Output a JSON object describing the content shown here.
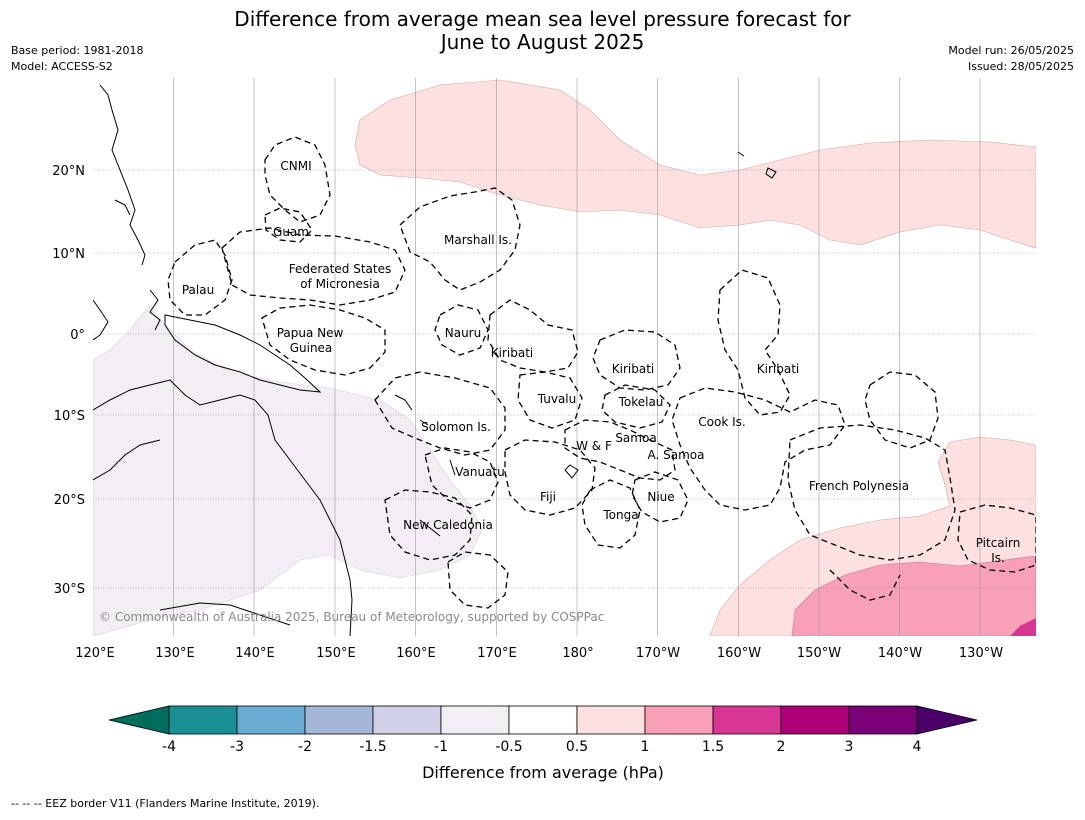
{
  "title_line1": "Difference from average mean sea level pressure forecast for",
  "title_line2": "June to August 2025",
  "base_period": "Base period: 1981-2018",
  "model": "Model: ACCESS-S2",
  "model_run": "Model run: 26/05/2025",
  "issued": "Issued: 28/05/2025",
  "copyright": "© Commonwealth of Australia 2025, Bureau of Meteorology, supported by COSPPac",
  "lat_labels": [
    "20°N",
    "10°N",
    "0°",
    "10°S",
    "20°S",
    "30°S"
  ],
  "lon_labels": [
    "120°E",
    "130°E",
    "140°E",
    "150°E",
    "160°E",
    "170°E",
    "180°",
    "170°W",
    "160°W",
    "150°W",
    "140°W",
    "130°W"
  ],
  "region_labels": {
    "cnmi": "CNMI",
    "guam": "Guam",
    "marshall": "Marshall Is.",
    "fsm_1": "Federated States",
    "fsm_2": "of Micronesia",
    "palau": "Palau",
    "png_1": "Papua New",
    "png_2": "Guinea",
    "nauru": "Nauru",
    "kiribati_w": "Kiribati",
    "kiribati_c": "Kiribati",
    "kiribati_e": "Kiribati",
    "tuvalu": "Tuvalu",
    "tokelau": "Tokelau",
    "cook": "Cook Is.",
    "solomon": "Solomon Is.",
    "samoa": "Samoa",
    "wf": "W & F",
    "asamoa": "A. Samoa",
    "vanuatu": "Vanuatu",
    "fiji": "Fiji",
    "niue": "Niue",
    "tonga": "Tonga",
    "frenchpoly": "French Polynesia",
    "newcal": "New Caledonia",
    "pitcairn_1": "Pitcairn",
    "pitcairn_2": "Is."
  },
  "colorbar": {
    "ticks": [
      "-4",
      "-3",
      "-2",
      "-1.5",
      "-1",
      "-0.5",
      "0.5",
      "1",
      "1.5",
      "2",
      "3",
      "4"
    ],
    "colors": [
      "#1a9096",
      "#6aabd4",
      "#a3b8d8",
      "#d0d0e6",
      "#f3edf4",
      "#ffffff",
      "#fde0e0",
      "#f8a0b8",
      "#d83595",
      "#ae0078",
      "#7a0078"
    ],
    "under_color": "#006e5d",
    "over_color": "#4a0068",
    "label": "Difference from average (hPa)"
  },
  "legend_text": "--  --  -- EEZ border V11 (Flanders Marine Institute, 2019)."
}
